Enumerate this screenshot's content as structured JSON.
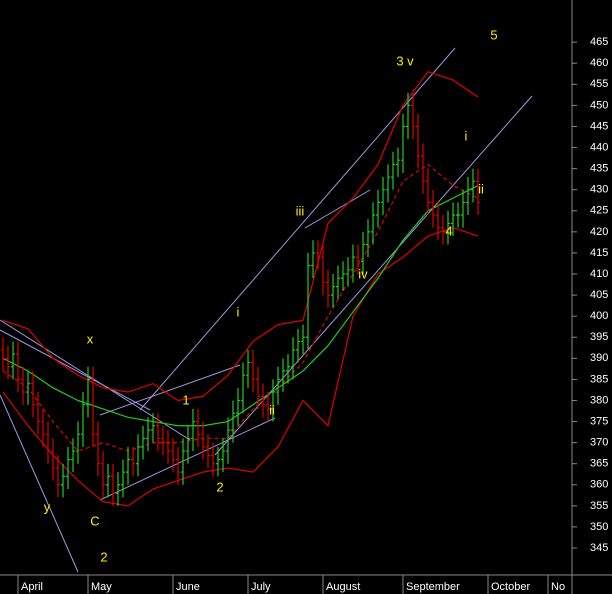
{
  "chart_data": {
    "type": "ohlc",
    "xlim": [
      -0.6,
      113.8
    ],
    "ylim": [
      338.6,
      475.0
    ],
    "yticks": [
      345,
      350,
      355,
      360,
      365,
      370,
      375,
      380,
      385,
      390,
      395,
      400,
      405,
      410,
      415,
      420,
      425,
      430,
      435,
      440,
      445,
      450,
      455,
      460,
      465
    ],
    "xticks": [
      {
        "value": 3,
        "label": "April"
      },
      {
        "value": 17,
        "label": "May"
      },
      {
        "value": 34,
        "label": "June"
      },
      {
        "value": 49,
        "label": "July"
      },
      {
        "value": 64,
        "label": "August"
      },
      {
        "value": 80,
        "label": "September"
      },
      {
        "value": 97,
        "label": "October"
      },
      {
        "value": 109,
        "label": "No"
      }
    ],
    "up_color": "#22cc22",
    "down_color": "#e00000",
    "open": [
      392,
      390,
      388,
      391,
      385,
      382,
      384,
      379,
      375,
      372,
      368,
      364,
      360,
      362,
      366,
      368,
      372,
      379,
      385,
      372,
      365,
      360,
      362,
      358,
      360,
      363,
      366,
      365,
      369,
      371,
      373,
      374,
      371,
      370,
      368,
      366,
      363,
      368,
      371,
      375,
      372,
      369,
      367,
      365,
      366,
      368,
      373,
      377,
      380,
      386,
      389,
      385,
      381,
      379,
      378,
      382,
      385,
      387,
      388,
      392,
      394,
      395,
      412,
      415,
      414,
      408,
      405,
      407,
      409,
      410,
      411,
      414,
      413,
      417,
      420,
      424,
      427,
      430,
      433,
      436,
      437,
      445,
      450,
      445,
      438,
      432,
      427,
      424,
      421,
      420,
      422,
      424,
      424,
      427,
      430,
      432
    ],
    "high": [
      395,
      393,
      394,
      394,
      388,
      387,
      387,
      382,
      378,
      375,
      371,
      367,
      365,
      369,
      371,
      375,
      382,
      388,
      388,
      375,
      368,
      365,
      365,
      363,
      366,
      369,
      369,
      372,
      374,
      376,
      377,
      377,
      374,
      373,
      371,
      369,
      371,
      374,
      378,
      378,
      375,
      372,
      370,
      369,
      371,
      376,
      380,
      383,
      389,
      392,
      392,
      388,
      384,
      382,
      385,
      388,
      390,
      391,
      395,
      397,
      398,
      415,
      418,
      418,
      417,
      411,
      410,
      412,
      413,
      414,
      417,
      417,
      420,
      423,
      427,
      430,
      433,
      436,
      439,
      440,
      448,
      453,
      453,
      448,
      441,
      435,
      430,
      427,
      424,
      425,
      427,
      427,
      430,
      433,
      435,
      435
    ],
    "low": [
      387,
      385,
      385,
      382,
      379,
      379,
      376,
      372,
      369,
      365,
      361,
      357,
      357,
      359,
      363,
      365,
      369,
      376,
      369,
      362,
      357,
      357,
      355,
      355,
      357,
      360,
      362,
      362,
      366,
      368,
      370,
      368,
      367,
      365,
      363,
      360,
      360,
      365,
      368,
      369,
      366,
      364,
      362,
      362,
      363,
      365,
      370,
      374,
      377,
      383,
      382,
      378,
      376,
      375,
      375,
      379,
      382,
      384,
      385,
      389,
      391,
      392,
      409,
      411,
      405,
      402,
      402,
      404,
      406,
      407,
      408,
      410,
      410,
      414,
      417,
      421,
      424,
      427,
      430,
      433,
      434,
      442,
      442,
      435,
      429,
      424,
      421,
      418,
      417,
      417,
      419,
      421,
      421,
      424,
      427,
      424
    ],
    "close": [
      390,
      388,
      391,
      385,
      382,
      384,
      379,
      375,
      372,
      368,
      364,
      360,
      362,
      366,
      368,
      372,
      379,
      385,
      372,
      365,
      360,
      362,
      358,
      360,
      363,
      366,
      365,
      369,
      371,
      373,
      374,
      371,
      370,
      368,
      366,
      363,
      368,
      371,
      375,
      372,
      369,
      367,
      365,
      366,
      368,
      373,
      377,
      380,
      386,
      389,
      385,
      381,
      379,
      378,
      382,
      385,
      387,
      388,
      392,
      394,
      395,
      412,
      415,
      414,
      408,
      405,
      407,
      409,
      410,
      411,
      414,
      413,
      417,
      420,
      424,
      427,
      430,
      433,
      436,
      437,
      445,
      450,
      445,
      438,
      432,
      427,
      424,
      421,
      420,
      422,
      424,
      424,
      427,
      430,
      432,
      427
    ],
    "lines": [
      {
        "color": "#e00000",
        "style": "solid",
        "x": [
          0,
          5,
          10,
          15,
          20,
          25,
          30,
          35,
          40,
          45,
          50,
          55,
          60,
          65,
          70,
          75,
          80,
          85,
          90,
          95
        ],
        "values": [
          399,
          397,
          390,
          386,
          383,
          382,
          384,
          380,
          381,
          386,
          394,
          398,
          399,
          422,
          428,
          436,
          450,
          458,
          456,
          452
        ]
      },
      {
        "color": "#e00000",
        "style": "solid",
        "x": [
          0,
          5,
          10,
          15,
          20,
          25,
          30,
          35,
          40,
          45,
          50,
          55,
          60,
          65,
          70,
          75,
          80,
          85,
          90,
          95
        ],
        "values": [
          382,
          374,
          367,
          361,
          356,
          355,
          359,
          361,
          363,
          364,
          363,
          369,
          380,
          374,
          400,
          410,
          414,
          419,
          421,
          419
        ]
      },
      {
        "color": "#22cc22",
        "style": "solid",
        "x": [
          0,
          5,
          10,
          15,
          20,
          25,
          30,
          35,
          40,
          45,
          50,
          55,
          60,
          65,
          70,
          75,
          80,
          85,
          90,
          95
        ],
        "values": [
          390,
          387,
          383,
          380,
          378,
          376,
          375,
          374,
          374,
          375,
          379,
          383,
          387,
          393,
          401,
          409,
          418,
          425,
          428,
          431
        ]
      },
      {
        "color": "#e00000",
        "style": "dashed",
        "x": [
          0,
          5,
          10,
          15,
          20,
          25,
          30,
          35,
          40,
          45,
          50,
          55,
          60,
          65,
          70,
          75,
          80,
          85,
          90,
          95
        ],
        "values": [
          387,
          383,
          375,
          368,
          370,
          368,
          370,
          370,
          371,
          371,
          378,
          383,
          389,
          400,
          410,
          420,
          432,
          436,
          431,
          428
        ]
      }
    ],
    "annotations": [
      "5",
      "3 v",
      "i",
      "ii",
      "4",
      "iii",
      "iv",
      "i",
      "ii",
      "1",
      "2",
      "x",
      "y",
      "C",
      "2"
    ]
  }
}
